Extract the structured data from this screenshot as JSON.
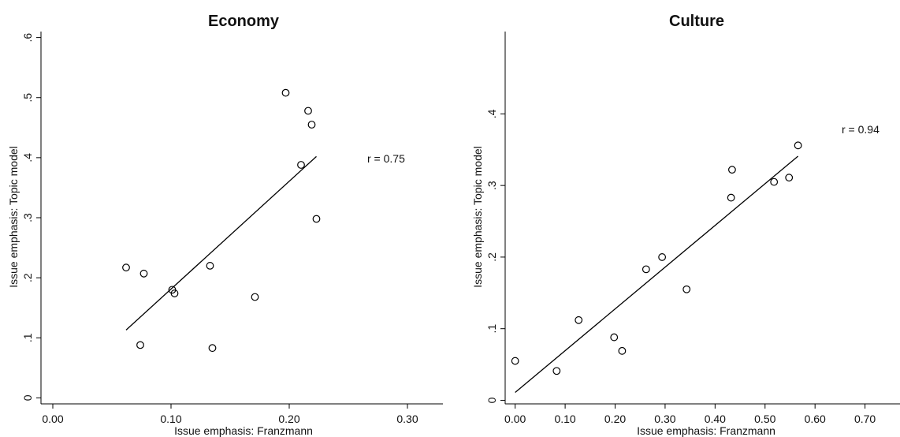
{
  "chart_data": [
    {
      "type": "scatter",
      "title": "Economy",
      "xlabel": "Issue emphasis: Franzmann",
      "ylabel": "Issue emphasis: Topic model",
      "xlim": [
        -0.01,
        0.33
      ],
      "ylim": [
        -0.01,
        0.61
      ],
      "xticks": [
        0.0,
        0.1,
        0.2,
        0.3
      ],
      "xtick_labels": [
        "0.00",
        "0.10",
        "0.20",
        "0.30"
      ],
      "yticks": [
        0.0,
        0.1,
        0.2,
        0.3,
        0.4,
        0.5,
        0.6
      ],
      "ytick_labels": [
        "0",
        ".1",
        ".2",
        ".3",
        ".4",
        ".5",
        ".6"
      ],
      "annotation": "r = 0.75",
      "points": [
        {
          "x": 0.062,
          "y": 0.217
        },
        {
          "x": 0.074,
          "y": 0.088
        },
        {
          "x": 0.077,
          "y": 0.207
        },
        {
          "x": 0.101,
          "y": 0.18
        },
        {
          "x": 0.103,
          "y": 0.174
        },
        {
          "x": 0.133,
          "y": 0.22
        },
        {
          "x": 0.135,
          "y": 0.083
        },
        {
          "x": 0.171,
          "y": 0.168
        },
        {
          "x": 0.197,
          "y": 0.508
        },
        {
          "x": 0.21,
          "y": 0.388
        },
        {
          "x": 0.216,
          "y": 0.478
        },
        {
          "x": 0.219,
          "y": 0.455
        },
        {
          "x": 0.223,
          "y": 0.298
        }
      ],
      "fit_line": [
        {
          "x": 0.062,
          "y": 0.113
        },
        {
          "x": 0.223,
          "y": 0.402
        }
      ]
    },
    {
      "type": "scatter",
      "title": "Culture",
      "xlabel": "Issue emphasis: Franzmann",
      "ylabel": "Issue emphasis: Topic model",
      "xlim": [
        -0.02,
        0.77
      ],
      "ylim": [
        -0.005,
        0.515
      ],
      "xticks": [
        0.0,
        0.1,
        0.2,
        0.3,
        0.4,
        0.5,
        0.6,
        0.7
      ],
      "xtick_labels": [
        "0.00",
        "0.10",
        "0.20",
        "0.30",
        "0.40",
        "0.50",
        "0.60",
        "0.70"
      ],
      "yticks": [
        0.0,
        0.1,
        0.2,
        0.3,
        0.4
      ],
      "ytick_labels": [
        "0",
        ".1",
        ".2",
        ".3",
        ".4"
      ],
      "annotation": "r = 0.94",
      "points": [
        {
          "x": 0.0,
          "y": 0.055
        },
        {
          "x": 0.083,
          "y": 0.041
        },
        {
          "x": 0.127,
          "y": 0.112
        },
        {
          "x": 0.198,
          "y": 0.088
        },
        {
          "x": 0.214,
          "y": 0.069
        },
        {
          "x": 0.262,
          "y": 0.183
        },
        {
          "x": 0.294,
          "y": 0.2
        },
        {
          "x": 0.343,
          "y": 0.155
        },
        {
          "x": 0.432,
          "y": 0.283
        },
        {
          "x": 0.434,
          "y": 0.322
        },
        {
          "x": 0.518,
          "y": 0.305
        },
        {
          "x": 0.548,
          "y": 0.311
        },
        {
          "x": 0.566,
          "y": 0.356
        }
      ],
      "fit_line": [
        {
          "x": 0.0,
          "y": 0.011
        },
        {
          "x": 0.566,
          "y": 0.341
        }
      ]
    }
  ]
}
